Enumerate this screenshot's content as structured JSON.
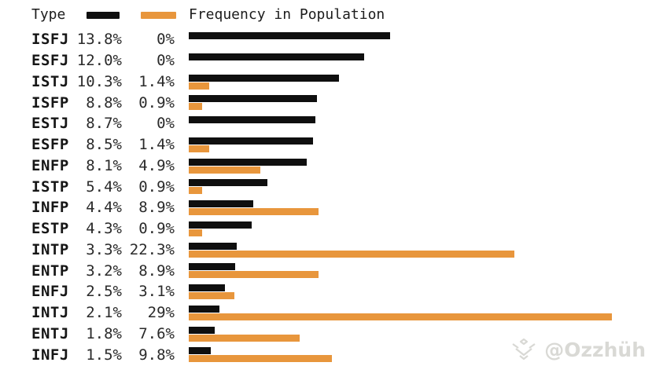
{
  "legend": {
    "type_label": "Type",
    "population_label": "Frequency in Population"
  },
  "colors": {
    "type_series": "#0f0f0f",
    "population_series": "#E8963C",
    "text": "#1c1c1c",
    "background": "#ffffff",
    "watermark": "#b9b9b2"
  },
  "watermark": {
    "handle": "@Ozzhüh",
    "logo_icon": "chevron-diamond-logo"
  },
  "chart_data": {
    "type": "bar",
    "orientation": "horizontal",
    "title": "",
    "legend_position": "top",
    "grid": false,
    "categories": [
      "ISFJ",
      "ESFJ",
      "ISTJ",
      "ISFP",
      "ESTJ",
      "ESFP",
      "ENFP",
      "ISTP",
      "INFP",
      "ESTP",
      "INTP",
      "ENTP",
      "ENFJ",
      "INTJ",
      "ENTJ",
      "INFJ"
    ],
    "series": [
      {
        "name": "Type",
        "color": "#0f0f0f",
        "values": [
          13.8,
          12.0,
          10.3,
          8.8,
          8.7,
          8.5,
          8.1,
          5.4,
          4.4,
          4.3,
          3.3,
          3.2,
          2.5,
          2.1,
          1.8,
          1.5
        ],
        "labels": [
          "13.8%",
          "12.0%",
          "10.3%",
          "8.8%",
          "8.7%",
          "8.5%",
          "8.1%",
          "5.4%",
          "4.4%",
          "4.3%",
          "3.3%",
          "3.2%",
          "2.5%",
          "2.1%",
          "1.8%",
          "1.5%"
        ]
      },
      {
        "name": "Frequency in Population",
        "color": "#E8963C",
        "values": [
          0,
          0,
          1.4,
          0.9,
          0,
          1.4,
          4.9,
          0.9,
          8.9,
          0.9,
          22.3,
          8.9,
          3.1,
          29,
          7.6,
          9.8
        ],
        "labels": [
          "0%",
          "0%",
          "1.4%",
          "0.9%",
          "0%",
          "1.4%",
          "4.9%",
          "0.9%",
          "8.9%",
          "0.9%",
          "22.3%",
          "8.9%",
          "3.1%",
          "29%",
          "7.6%",
          "9.8%"
        ]
      }
    ],
    "xlim": [
      0,
      31.75
    ]
  }
}
